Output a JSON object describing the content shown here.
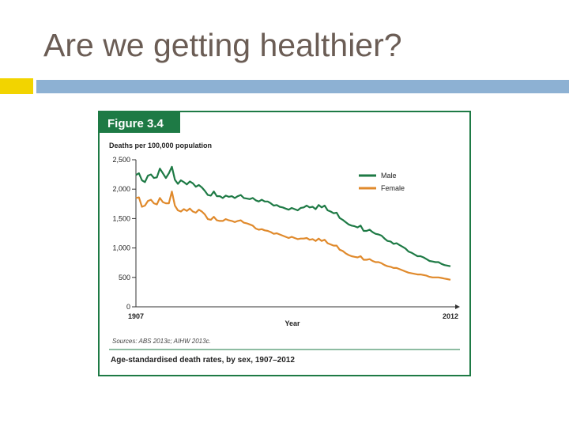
{
  "slide": {
    "title": "Are we getting healthier?"
  },
  "figure": {
    "label": "Figure 3.4",
    "source": "Sources: ABS 2013c; AIHW 2013c.",
    "caption": "Age-standardised death rates, by sex, 1907–2012"
  },
  "colors": {
    "male": "#1e7a45",
    "female": "#e08a2c",
    "frame": "#1e7a45",
    "axis": "#333333"
  },
  "chart_data": {
    "type": "line",
    "ylabel": "Deaths per 100,000 population",
    "xlabel": "Year",
    "xlim": [
      1907,
      2012
    ],
    "ylim": [
      0,
      2500
    ],
    "x_ticks": [
      1907,
      2012
    ],
    "y_ticks": [
      0,
      500,
      1000,
      1500,
      2000,
      2500
    ],
    "y_tick_labels": [
      "0",
      "500",
      "1,000",
      "1,500",
      "2,000",
      "2,500"
    ],
    "legend_position": "right",
    "series": [
      {
        "name": "Male",
        "color": "#1e7a45",
        "points": [
          [
            1907,
            2240
          ],
          [
            1908,
            2270
          ],
          [
            1909,
            2150
          ],
          [
            1910,
            2120
          ],
          [
            1911,
            2230
          ],
          [
            1912,
            2250
          ],
          [
            1913,
            2190
          ],
          [
            1914,
            2200
          ],
          [
            1915,
            2350
          ],
          [
            1916,
            2270
          ],
          [
            1917,
            2190
          ],
          [
            1918,
            2270
          ],
          [
            1919,
            2380
          ],
          [
            1920,
            2160
          ],
          [
            1921,
            2090
          ],
          [
            1922,
            2150
          ],
          [
            1923,
            2120
          ],
          [
            1924,
            2080
          ],
          [
            1925,
            2130
          ],
          [
            1926,
            2100
          ],
          [
            1927,
            2040
          ],
          [
            1928,
            2070
          ],
          [
            1929,
            2030
          ],
          [
            1930,
            1970
          ],
          [
            1931,
            1900
          ],
          [
            1932,
            1890
          ],
          [
            1933,
            1960
          ],
          [
            1934,
            1880
          ],
          [
            1935,
            1880
          ],
          [
            1936,
            1850
          ],
          [
            1937,
            1890
          ],
          [
            1938,
            1870
          ],
          [
            1939,
            1880
          ],
          [
            1940,
            1850
          ],
          [
            1941,
            1880
          ],
          [
            1942,
            1900
          ],
          [
            1943,
            1850
          ],
          [
            1944,
            1840
          ],
          [
            1945,
            1830
          ],
          [
            1946,
            1850
          ],
          [
            1947,
            1810
          ],
          [
            1948,
            1790
          ],
          [
            1949,
            1820
          ],
          [
            1950,
            1790
          ],
          [
            1951,
            1790
          ],
          [
            1952,
            1760
          ],
          [
            1953,
            1720
          ],
          [
            1954,
            1730
          ],
          [
            1955,
            1700
          ],
          [
            1956,
            1690
          ],
          [
            1957,
            1670
          ],
          [
            1958,
            1650
          ],
          [
            1959,
            1680
          ],
          [
            1960,
            1660
          ],
          [
            1961,
            1640
          ],
          [
            1962,
            1680
          ],
          [
            1963,
            1690
          ],
          [
            1964,
            1720
          ],
          [
            1965,
            1690
          ],
          [
            1966,
            1700
          ],
          [
            1967,
            1660
          ],
          [
            1968,
            1730
          ],
          [
            1969,
            1690
          ],
          [
            1970,
            1720
          ],
          [
            1971,
            1640
          ],
          [
            1972,
            1620
          ],
          [
            1973,
            1590
          ],
          [
            1974,
            1600
          ],
          [
            1975,
            1510
          ],
          [
            1976,
            1480
          ],
          [
            1977,
            1440
          ],
          [
            1978,
            1400
          ],
          [
            1979,
            1380
          ],
          [
            1980,
            1370
          ],
          [
            1981,
            1350
          ],
          [
            1982,
            1380
          ],
          [
            1983,
            1290
          ],
          [
            1984,
            1290
          ],
          [
            1985,
            1310
          ],
          [
            1986,
            1270
          ],
          [
            1987,
            1240
          ],
          [
            1988,
            1230
          ],
          [
            1989,
            1210
          ],
          [
            1990,
            1160
          ],
          [
            1991,
            1120
          ],
          [
            1992,
            1110
          ],
          [
            1993,
            1070
          ],
          [
            1994,
            1080
          ],
          [
            1995,
            1050
          ],
          [
            1996,
            1020
          ],
          [
            1997,
            990
          ],
          [
            1998,
            940
          ],
          [
            1999,
            920
          ],
          [
            2000,
            890
          ],
          [
            2001,
            860
          ],
          [
            2002,
            860
          ],
          [
            2003,
            840
          ],
          [
            2004,
            810
          ],
          [
            2005,
            780
          ],
          [
            2006,
            770
          ],
          [
            2007,
            760
          ],
          [
            2008,
            760
          ],
          [
            2009,
            730
          ],
          [
            2010,
            710
          ],
          [
            2011,
            700
          ],
          [
            2012,
            690
          ]
        ]
      },
      {
        "name": "Female",
        "color": "#e08a2c",
        "points": [
          [
            1907,
            1850
          ],
          [
            1908,
            1860
          ],
          [
            1909,
            1700
          ],
          [
            1910,
            1720
          ],
          [
            1911,
            1800
          ],
          [
            1912,
            1820
          ],
          [
            1913,
            1760
          ],
          [
            1914,
            1740
          ],
          [
            1915,
            1850
          ],
          [
            1916,
            1780
          ],
          [
            1917,
            1760
          ],
          [
            1918,
            1760
          ],
          [
            1919,
            1960
          ],
          [
            1920,
            1720
          ],
          [
            1921,
            1640
          ],
          [
            1922,
            1620
          ],
          [
            1923,
            1660
          ],
          [
            1924,
            1630
          ],
          [
            1925,
            1670
          ],
          [
            1926,
            1620
          ],
          [
            1927,
            1600
          ],
          [
            1928,
            1650
          ],
          [
            1929,
            1620
          ],
          [
            1930,
            1570
          ],
          [
            1931,
            1490
          ],
          [
            1932,
            1480
          ],
          [
            1933,
            1530
          ],
          [
            1934,
            1470
          ],
          [
            1935,
            1460
          ],
          [
            1936,
            1460
          ],
          [
            1937,
            1490
          ],
          [
            1938,
            1470
          ],
          [
            1939,
            1460
          ],
          [
            1940,
            1440
          ],
          [
            1941,
            1460
          ],
          [
            1942,
            1470
          ],
          [
            1943,
            1430
          ],
          [
            1944,
            1420
          ],
          [
            1945,
            1400
          ],
          [
            1946,
            1380
          ],
          [
            1947,
            1330
          ],
          [
            1948,
            1310
          ],
          [
            1949,
            1320
          ],
          [
            1950,
            1300
          ],
          [
            1951,
            1290
          ],
          [
            1952,
            1270
          ],
          [
            1953,
            1240
          ],
          [
            1954,
            1250
          ],
          [
            1955,
            1230
          ],
          [
            1956,
            1210
          ],
          [
            1957,
            1190
          ],
          [
            1958,
            1170
          ],
          [
            1959,
            1190
          ],
          [
            1960,
            1170
          ],
          [
            1961,
            1150
          ],
          [
            1962,
            1160
          ],
          [
            1963,
            1160
          ],
          [
            1964,
            1170
          ],
          [
            1965,
            1140
          ],
          [
            1966,
            1150
          ],
          [
            1967,
            1120
          ],
          [
            1968,
            1160
          ],
          [
            1969,
            1120
          ],
          [
            1970,
            1140
          ],
          [
            1971,
            1080
          ],
          [
            1972,
            1060
          ],
          [
            1973,
            1040
          ],
          [
            1974,
            1040
          ],
          [
            1975,
            970
          ],
          [
            1976,
            950
          ],
          [
            1977,
            910
          ],
          [
            1978,
            880
          ],
          [
            1979,
            860
          ],
          [
            1980,
            850
          ],
          [
            1981,
            840
          ],
          [
            1982,
            860
          ],
          [
            1983,
            800
          ],
          [
            1984,
            800
          ],
          [
            1985,
            810
          ],
          [
            1986,
            780
          ],
          [
            1987,
            760
          ],
          [
            1988,
            760
          ],
          [
            1989,
            740
          ],
          [
            1990,
            710
          ],
          [
            1991,
            690
          ],
          [
            1992,
            680
          ],
          [
            1993,
            660
          ],
          [
            1994,
            660
          ],
          [
            1995,
            640
          ],
          [
            1996,
            620
          ],
          [
            1997,
            600
          ],
          [
            1998,
            580
          ],
          [
            1999,
            570
          ],
          [
            2000,
            560
          ],
          [
            2001,
            550
          ],
          [
            2002,
            550
          ],
          [
            2003,
            540
          ],
          [
            2004,
            530
          ],
          [
            2005,
            510
          ],
          [
            2006,
            500
          ],
          [
            2007,
            500
          ],
          [
            2008,
            500
          ],
          [
            2009,
            490
          ],
          [
            2010,
            480
          ],
          [
            2011,
            470
          ],
          [
            2012,
            460
          ]
        ]
      }
    ]
  }
}
